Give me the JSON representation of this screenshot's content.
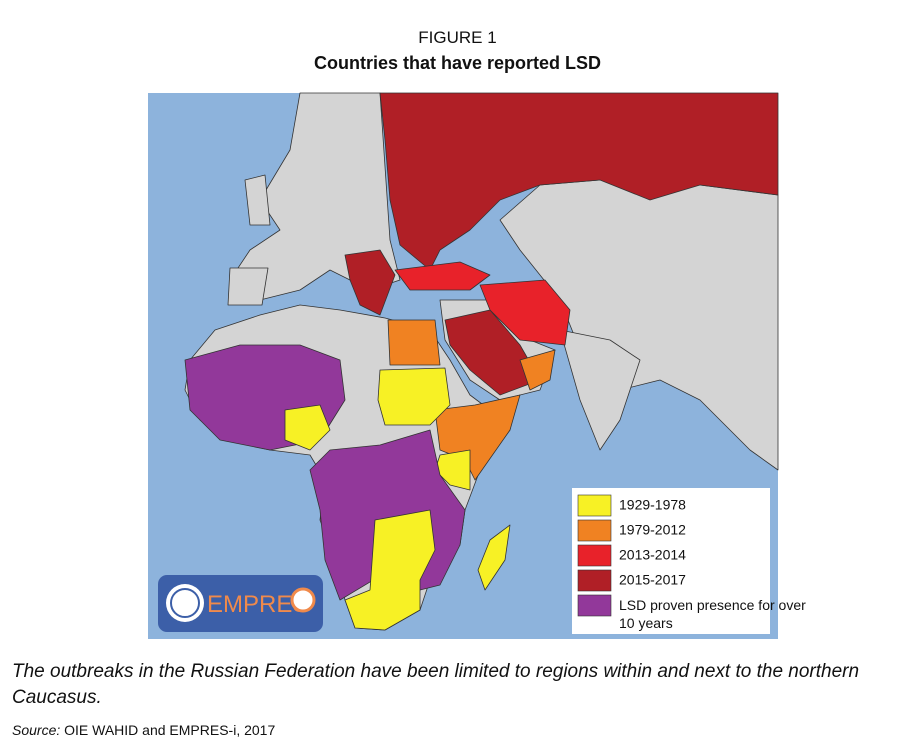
{
  "figure_label": "FIGURE 1",
  "title": "Countries that have reported LSD",
  "legend": [
    {
      "label": "1929-1978",
      "color": "#f7f125"
    },
    {
      "label": "1979-2012",
      "color": "#f08222"
    },
    {
      "label": "2013-2014",
      "color": "#e8222a"
    },
    {
      "label": "2015-2017",
      "color": "#b01f26"
    },
    {
      "label": "LSD proven presence for over 10 years",
      "color": "#92389a"
    }
  ],
  "logo_text": "EMPRES",
  "caption": "The outbreaks in the Russian Federation have been limited to regions within and next to the northern Caucasus.",
  "source_label": "Source:",
  "source_text": "OIE WAHID and EMPRES-i, 2017"
}
